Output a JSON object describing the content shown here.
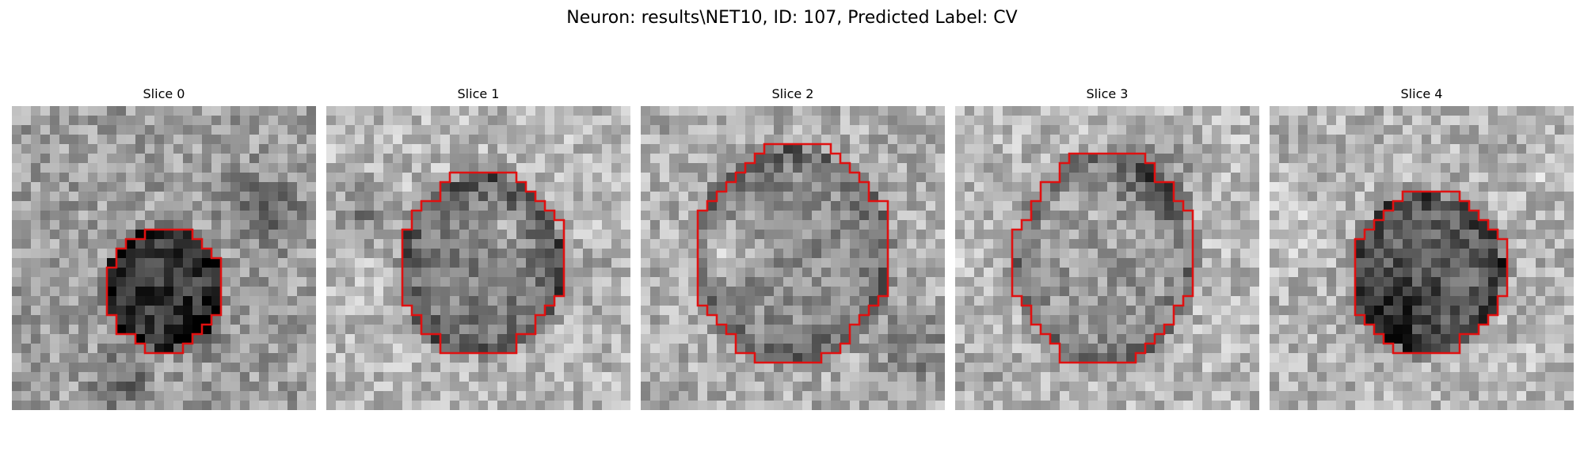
{
  "figure": {
    "title": "Neuron: results\\NET10, ID: 107, Predicted Label: CV",
    "roi_color": "#e01010"
  },
  "slices": [
    {
      "title": "Slice 0",
      "background_tone": 0.62,
      "roi_tone": 0.22,
      "roi_center": [
        0.5,
        0.6
      ],
      "roi_radius": [
        0.19,
        0.2
      ]
    },
    {
      "title": "Slice 1",
      "background_tone": 0.72,
      "roi_tone": 0.48,
      "roi_center": [
        0.51,
        0.52
      ],
      "roi_radius": [
        0.27,
        0.3
      ]
    },
    {
      "title": "Slice 2",
      "background_tone": 0.68,
      "roi_tone": 0.55,
      "roi_center": [
        0.5,
        0.49
      ],
      "roi_radius": [
        0.32,
        0.35
      ]
    },
    {
      "title": "Slice 3",
      "background_tone": 0.72,
      "roi_tone": 0.6,
      "roi_center": [
        0.49,
        0.5
      ],
      "roi_radius": [
        0.29,
        0.35
      ]
    },
    {
      "title": "Slice 4",
      "background_tone": 0.7,
      "roi_tone": 0.38,
      "roi_center": [
        0.52,
        0.55
      ],
      "roi_radius": [
        0.25,
        0.26
      ]
    }
  ]
}
